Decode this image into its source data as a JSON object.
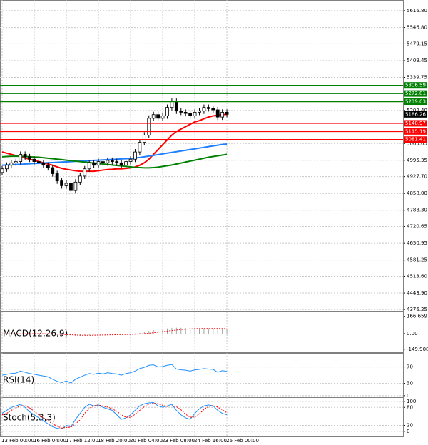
{
  "chart_data": [
    {
      "type": "candlestick",
      "categories": [
        "13 Feb 00:00",
        null,
        null,
        null,
        null,
        null,
        null,
        "16 Feb 04:00",
        null,
        null,
        null,
        null,
        null,
        null,
        "17 Feb 12:00",
        null,
        null,
        null,
        null,
        null,
        null,
        "18 Feb 20:00",
        null,
        null,
        null,
        null,
        null,
        null,
        "20 Feb 04:00",
        null,
        null,
        null,
        null,
        null,
        null,
        "23 Feb 08:00",
        null,
        null,
        null,
        null,
        null,
        null,
        "24 Feb 16:00",
        null,
        null,
        null,
        null,
        null,
        null,
        "26 Feb 00:00"
      ],
      "open": [
        4945,
        4960,
        4975,
        4985,
        4990,
        5020,
        5010,
        5000,
        4990,
        4985,
        4975,
        4965,
        4940,
        4910,
        4890,
        4900,
        4870,
        4905,
        4930,
        4960,
        4985,
        4975,
        4990,
        4985,
        4995,
        4990,
        4985,
        4975,
        4990,
        5000,
        5030,
        5070,
        5100,
        5170,
        5185,
        5170,
        5180,
        5215,
        5240,
        5200,
        5195,
        5190,
        5180,
        5195,
        5200,
        5215,
        5210,
        5205,
        5175,
        5195
      ],
      "high": [
        4972,
        4987,
        4997,
        5002,
        5032,
        5032,
        5022,
        5012,
        5002,
        4997,
        4987,
        4977,
        4952,
        4922,
        4912,
        4912,
        4917,
        4942,
        4972,
        4997,
        4997,
        5002,
        5002,
        5007,
        5007,
        5002,
        4997,
        5002,
        5012,
        5042,
        5082,
        5112,
        5182,
        5197,
        5197,
        5192,
        5227,
        5252,
        5252,
        5212,
        5207,
        5202,
        5207,
        5212,
        5227,
        5227,
        5222,
        5217,
        5207,
        5207
      ],
      "low": [
        4933,
        4948,
        4963,
        4973,
        4978,
        4998,
        4988,
        4978,
        4973,
        4963,
        4953,
        4928,
        4898,
        4878,
        4878,
        4858,
        4858,
        4893,
        4918,
        4948,
        4963,
        4963,
        4973,
        4973,
        4978,
        4973,
        4963,
        4963,
        4978,
        4988,
        5018,
        5058,
        5088,
        5158,
        5158,
        5158,
        5168,
        5203,
        5188,
        5183,
        5178,
        5168,
        5168,
        5183,
        5188,
        5198,
        5193,
        5163,
        5163,
        5174
      ],
      "close": [
        4960,
        4975,
        4985,
        4990,
        5020,
        5010,
        5000,
        4990,
        4985,
        4975,
        4965,
        4940,
        4910,
        4890,
        4900,
        4870,
        4905,
        4930,
        4960,
        4985,
        4975,
        4990,
        4985,
        4995,
        4990,
        4985,
        4975,
        4990,
        5000,
        5030,
        5070,
        5100,
        5170,
        5185,
        5170,
        5180,
        5215,
        5240,
        5200,
        5195,
        5190,
        5180,
        5195,
        5200,
        5215,
        5210,
        5205,
        5175,
        5195,
        5186.26
      ],
      "up_color": "#ffffff",
      "down_color": "#000000",
      "wick_color": "#000000",
      "series": [
        {
          "color": "#ff0000",
          "values": [
            5030,
            5025,
            5020,
            5015,
            5010,
            5005,
            5000,
            4995,
            4990,
            4985,
            4980,
            4975,
            4968,
            4962,
            4958,
            4955,
            4952,
            4950,
            4950,
            4950,
            4950,
            4952,
            4955,
            4957,
            4958,
            4960,
            4960,
            4962,
            4964,
            4968,
            4975,
            4985,
            5000,
            5020,
            5040,
            5060,
            5080,
            5100,
            5115,
            5125,
            5135,
            5145,
            5155,
            5160,
            5168,
            5175,
            5180,
            5182,
            5185,
            5186
          ]
        },
        {
          "color": "#1e7fff",
          "values": [
            4975,
            4976,
            4977,
            4978,
            4979,
            4980,
            4981,
            4982,
            4983,
            4984,
            4985,
            4986,
            4987,
            4988,
            4989,
            4990,
            4991,
            4992,
            4993,
            4994,
            4995,
            4996,
            4997,
            4998,
            4999,
            5000,
            5001,
            5002,
            5003,
            5005,
            5007,
            5010,
            5013,
            5016,
            5019,
            5022,
            5025,
            5028,
            5031,
            5034,
            5037,
            5040,
            5043,
            5046,
            5049,
            5052,
            5055,
            5058,
            5061,
            5063
          ]
        },
        {
          "color": "#008000",
          "values": [
            5010,
            5011,
            5012,
            5012,
            5012,
            5011,
            5010,
            5009,
            5008,
            5006,
            5004,
            5002,
            5000,
            4998,
            4996,
            4994,
            4992,
            4990,
            4988,
            4986,
            4984,
            4982,
            4980,
            4978,
            4976,
            4974,
            4972,
            4970,
            4968,
            4966,
            4965,
            4964,
            4964,
            4965,
            4967,
            4970,
            4973,
            4976,
            4980,
            4984,
            4988,
            4992,
            4996,
            5000,
            5004,
            5008,
            5011,
            5014,
            5017,
            5020
          ]
        }
      ],
      "levels": [
        {
          "value": 5306.59,
          "color": "#008000"
        },
        {
          "value": 5272.81,
          "color": "#008000"
        },
        {
          "value": 5239.03,
          "color": "#008000"
        },
        {
          "value": 5148.97,
          "color": "#ff0000"
        },
        {
          "value": 5115.19,
          "color": "#ff0000"
        },
        {
          "value": 5081.41,
          "color": "#ff0000"
        }
      ],
      "ylim": [
        4370,
        5661
      ],
      "yticks": [
        {
          "value": 5616.8,
          "label": "5616.80"
        },
        {
          "value": 5546.8,
          "label": "5546.80"
        },
        5479.15,
        5409.45,
        5339.75,
        {
          "value": 5202.4,
          "label": "5202.40"
        },
        5065.05,
        4995.35,
        {
          "value": 4927.7,
          "label": "4927.70"
        },
        {
          "value": 4858,
          "label": "4858.00"
        },
        {
          "value": 4788.3,
          "label": "4788.30"
        },
        4720.65,
        4650.95,
        4581.25,
        {
          "value": 4513.6,
          "label": "4513.60"
        },
        {
          "value": 4443.9,
          "label": "4443.90"
        },
        4376.25
      ],
      "grid": true
    },
    {
      "type": "line",
      "title": "MACD(12,26,9)",
      "series": [
        {
          "kind": "bar",
          "color": "#a0a0a0",
          "values": [
            -5,
            -4,
            -3,
            -2,
            0,
            1,
            1,
            0,
            -1,
            -3,
            -5,
            -8,
            -12,
            -16,
            -18,
            -22,
            -22,
            -20,
            -17,
            -13,
            -11,
            -9,
            -8,
            -6,
            -5,
            -5,
            -5,
            -4,
            -2,
            2,
            8,
            15,
            25,
            34,
            39,
            44,
            50,
            56,
            57,
            56,
            55,
            53,
            52,
            51,
            51,
            51,
            50,
            48,
            47,
            45
          ]
        },
        {
          "kind": "line",
          "dash": true,
          "color": "#ff0000",
          "values": [
            -3,
            -3,
            -3,
            -3,
            -2,
            -2,
            -1,
            -1,
            -1,
            -1,
            -2,
            -3,
            -5,
            -7,
            -9,
            -11,
            -13,
            -15,
            -16,
            -16,
            -15,
            -14,
            -13,
            -12,
            -11,
            -10,
            -9,
            -8,
            -7,
            -5,
            -3,
            0,
            4,
            9,
            15,
            20,
            25,
            30,
            35,
            40,
            43,
            46,
            48,
            49,
            50,
            50,
            50,
            50,
            49,
            48
          ]
        }
      ],
      "ylim": [
        -179,
        213
      ],
      "yticks": [
        166.659,
        {
          "value": 0,
          "label": "0.00"
        },
        -149.908
      ],
      "grid": false
    },
    {
      "type": "line",
      "title": "RSI(14)",
      "series": [
        {
          "kind": "line",
          "color": "#1e90ff",
          "values": [
            50,
            52,
            54,
            55,
            60,
            57,
            54,
            52,
            50,
            48,
            46,
            40,
            35,
            32,
            36,
            31,
            40,
            45,
            50,
            54,
            52,
            55,
            53,
            56,
            54,
            53,
            50,
            54,
            56,
            60,
            66,
            69,
            74,
            75,
            70,
            71,
            74,
            76,
            65,
            63,
            62,
            60,
            63,
            64,
            66,
            65,
            64,
            57,
            61,
            59
          ]
        }
      ],
      "ylim": [
        -2,
        104
      ],
      "yticks": [
        70,
        30,
        0
      ],
      "grid": true
    },
    {
      "type": "line",
      "title": "Stoch(5,3,3)",
      "series": [
        {
          "kind": "line",
          "color": "#1e90ff",
          "values": [
            60,
            70,
            80,
            85,
            90,
            80,
            65,
            55,
            45,
            35,
            25,
            15,
            10,
            8,
            20,
            15,
            40,
            60,
            80,
            90,
            85,
            88,
            80,
            75,
            70,
            55,
            40,
            45,
            55,
            70,
            85,
            92,
            95,
            96,
            85,
            80,
            85,
            90,
            70,
            55,
            45,
            40,
            60,
            75,
            85,
            88,
            85,
            70,
            60,
            55
          ]
        },
        {
          "kind": "line",
          "dash": true,
          "color": "#ff0000",
          "values": [
            55,
            60,
            70,
            78,
            85,
            85,
            78,
            67,
            55,
            45,
            35,
            25,
            17,
            11,
            13,
            14,
            25,
            38,
            60,
            77,
            85,
            88,
            84,
            81,
            75,
            67,
            55,
            47,
            47,
            57,
            70,
            82,
            91,
            94,
            92,
            87,
            83,
            85,
            82,
            72,
            57,
            47,
            48,
            58,
            73,
            83,
            86,
            81,
            72,
            62
          ]
        }
      ],
      "ylim": [
        -17,
        114
      ],
      "yticks": [
        100,
        80,
        20,
        0
      ],
      "grid": true
    }
  ]
}
